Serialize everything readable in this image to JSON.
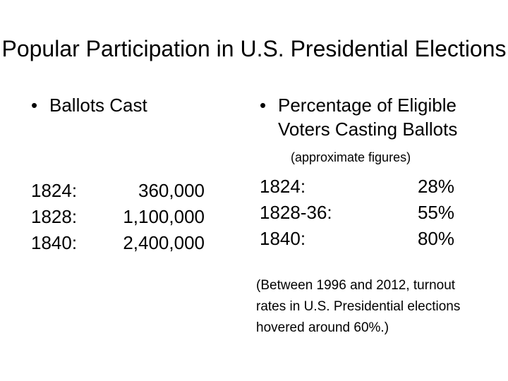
{
  "slide": {
    "title": "Popular Participation in U.S. Presidential Elections",
    "bullet_glyph": "•",
    "colors": {
      "background": "#ffffff",
      "text": "#000000"
    },
    "left": {
      "heading": "Ballots Cast",
      "rows": [
        {
          "year": "1824:",
          "value": "360,000"
        },
        {
          "year": "1828:",
          "value": "1,100,000"
        },
        {
          "year": "1840:",
          "value": "2,400,000"
        }
      ]
    },
    "right": {
      "heading_lines": [
        "Percentage of Eligible",
        "Voters Casting Ballots"
      ],
      "subnote": "(approximate figures)",
      "rows": [
        {
          "year": "1824:",
          "value": "28%"
        },
        {
          "year": "1828-36:",
          "value": "55%"
        },
        {
          "year": "1840:",
          "value": "80%"
        }
      ],
      "footnote_lines": [
        "(Between 1996 and 2012, turnout",
        "rates in U.S. Presidential elections",
        "hovered around 60%.)"
      ]
    }
  }
}
